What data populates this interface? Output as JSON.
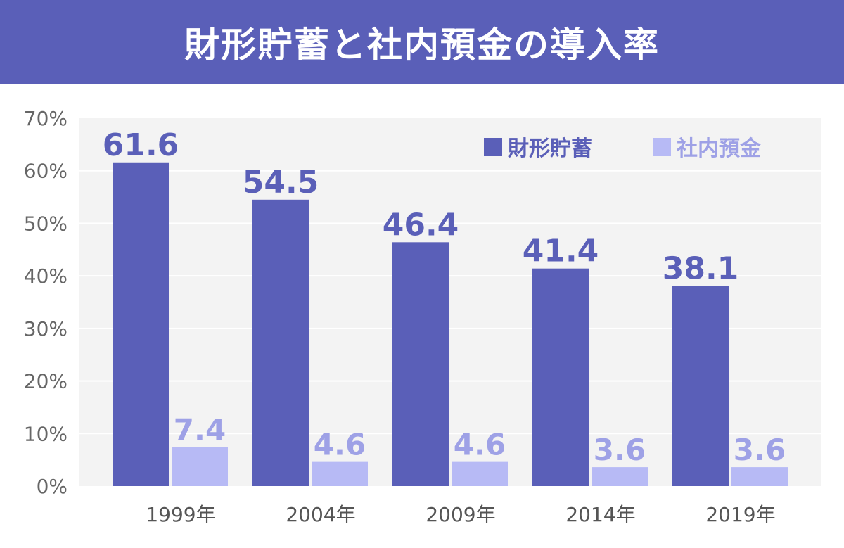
{
  "title": "財形貯蓄と社内預金の導入率",
  "colors": {
    "header_bg": "#5a5fb8",
    "plot_bg": "#f3f3f3",
    "series1": "#5a5fb8",
    "series2": "#b7baf5",
    "series2_label": "#9ea1e6"
  },
  "chart_data": {
    "type": "bar",
    "categories": [
      "1999年",
      "2004年",
      "2009年",
      "2014年",
      "2019年"
    ],
    "series": [
      {
        "name": "財形貯蓄",
        "values": [
          61.6,
          54.5,
          46.4,
          41.4,
          38.1
        ],
        "labels": [
          "61.6",
          "54.5",
          "46.4",
          "41.4",
          "38.1"
        ]
      },
      {
        "name": "社内預金",
        "values": [
          7.4,
          4.6,
          4.6,
          3.6,
          3.6
        ],
        "labels": [
          "7.4",
          "4.6",
          "4.6",
          "3.6",
          "3.6"
        ]
      }
    ],
    "ylim": [
      0,
      70
    ],
    "yticks": [
      "0%",
      "10%",
      "20%",
      "30%",
      "40%",
      "50%",
      "60%",
      "70%"
    ],
    "grid": true,
    "legend_position": "top-right"
  }
}
